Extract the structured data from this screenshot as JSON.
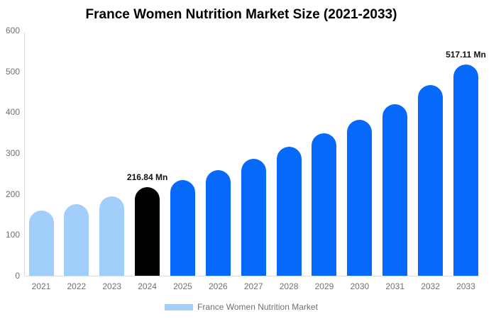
{
  "title": "France Women Nutrition Market Size (2021-2033)",
  "legend": {
    "label": "France Women Nutrition Market",
    "swatch_color": "#A1CEFA"
  },
  "colors": {
    "historical_bar": "#A1CEFA",
    "highlight_bar": "#000000",
    "forecast_bar": "#0669FA",
    "axis_line": "#DEDEDE",
    "tick_text": "#717171",
    "value_label_text": "#111111",
    "title_text": "#000000"
  },
  "chart_data": {
    "type": "bar",
    "title": "France Women Nutrition Market Size (2021-2033)",
    "unit": "Mn",
    "categories": [
      "2021",
      "2022",
      "2023",
      "2024",
      "2025",
      "2026",
      "2027",
      "2028",
      "2029",
      "2030",
      "2031",
      "2032",
      "2033"
    ],
    "values": [
      159,
      175,
      194,
      216.84,
      234,
      258,
      286,
      316,
      348,
      382,
      420,
      466,
      517.11
    ],
    "bar_roles": [
      "historical",
      "historical",
      "historical",
      "highlight",
      "forecast",
      "forecast",
      "forecast",
      "forecast",
      "forecast",
      "forecast",
      "forecast",
      "forecast",
      "forecast"
    ],
    "data_labels": [
      null,
      null,
      null,
      "216.84 Mn",
      null,
      null,
      null,
      null,
      null,
      null,
      null,
      null,
      "517.11 Mn"
    ],
    "xlabel": "",
    "ylabel": "",
    "ylim": [
      0,
      600
    ],
    "yticks": [
      0,
      100,
      200,
      300,
      400,
      500,
      600
    ],
    "grid": false,
    "legend_position": "bottom",
    "legend_entries": [
      "France Women Nutrition Market"
    ]
  }
}
